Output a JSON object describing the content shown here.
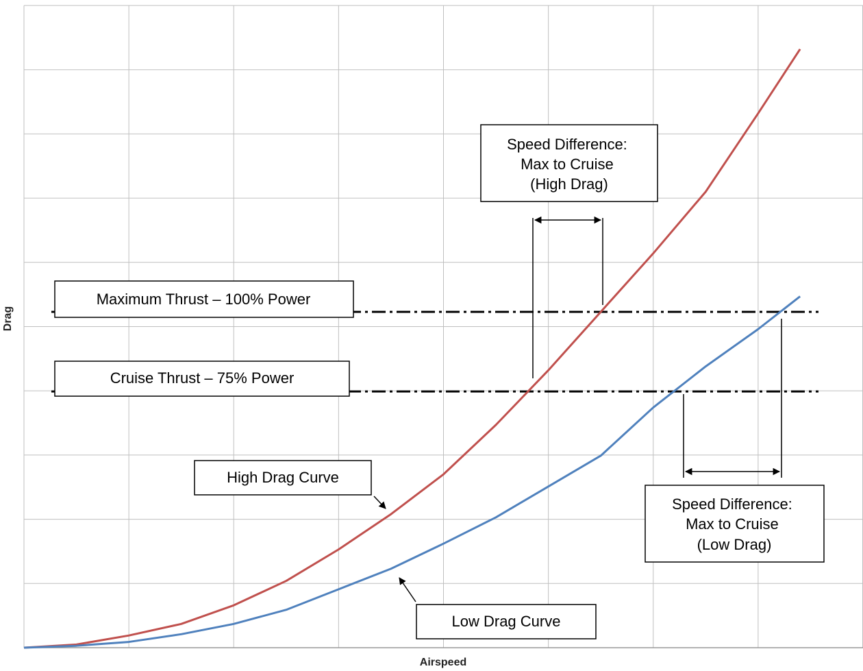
{
  "chart_data": {
    "type": "line",
    "x_label": "Airspeed",
    "y_label": "Drag",
    "x": [
      0,
      0.5,
      1,
      1.5,
      2,
      2.5,
      3,
      3.5,
      4,
      4.5,
      5,
      5.5,
      6,
      6.5,
      7,
      7.4
    ],
    "series": [
      {
        "name": "High Drag Curve",
        "color": "#c0504d",
        "values": [
          0,
          0.05,
          0.19,
          0.37,
          0.66,
          1.04,
          1.53,
          2.08,
          2.7,
          3.47,
          4.32,
          5.23,
          6.14,
          7.1,
          8.32,
          9.32
        ]
      },
      {
        "name": "Low Drag Curve",
        "color": "#4f81bd",
        "values": [
          0,
          0.03,
          0.09,
          0.21,
          0.37,
          0.59,
          0.91,
          1.23,
          1.62,
          2.03,
          2.51,
          2.99,
          3.74,
          4.38,
          4.96,
          5.47
        ]
      }
    ],
    "reference_lines": [
      {
        "label": "Maximum Thrust – 100% Power",
        "value": 5.23
      },
      {
        "label": "Cruise Thrust – 75% Power",
        "value": 3.99
      }
    ],
    "annotations": [
      {
        "lines": [
          "Speed Difference:",
          "Max to Cruise",
          "(High Drag)"
        ]
      },
      {
        "lines": [
          "Speed Difference:",
          "Max to Cruise",
          "(Low Drag)"
        ]
      }
    ],
    "xlim": [
      0,
      8
    ],
    "ylim": [
      0,
      10
    ],
    "xticks": [
      0,
      1,
      2,
      3,
      4,
      5,
      6,
      7,
      8
    ],
    "yticks": [
      0,
      1,
      2,
      3,
      4,
      5,
      6,
      7,
      8,
      9,
      10
    ],
    "grid": true
  }
}
